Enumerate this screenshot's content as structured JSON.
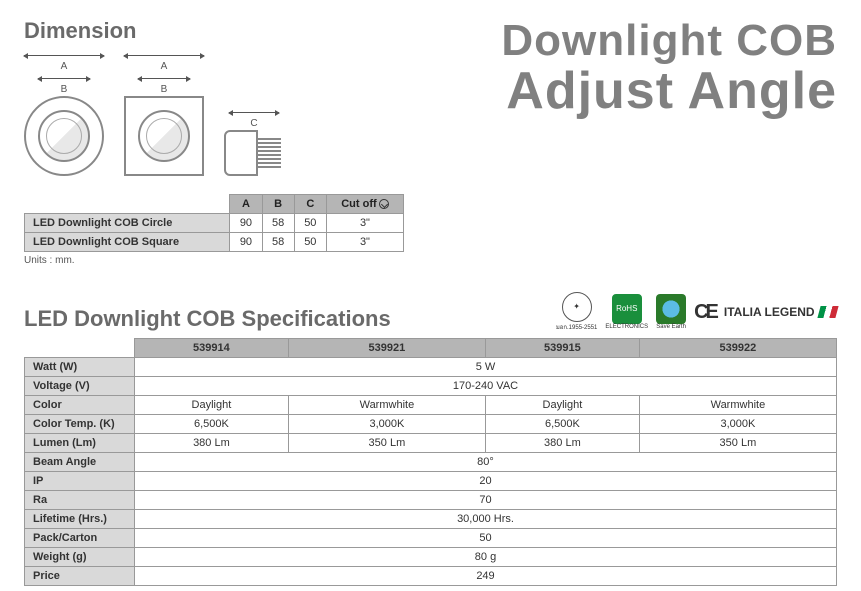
{
  "dimension": {
    "title": "Dimension",
    "labels": {
      "A": "A",
      "B": "B",
      "C": "C"
    },
    "table": {
      "headers": [
        "A",
        "B",
        "C",
        "Cut off"
      ],
      "rows": [
        {
          "name": "LED Downlight COB Circle",
          "values": [
            "90",
            "58",
            "50",
            "3\""
          ]
        },
        {
          "name": "LED Downlight COB Square",
          "values": [
            "90",
            "58",
            "50",
            "3\""
          ]
        }
      ]
    },
    "units": "Units : mm."
  },
  "product_title": {
    "line1": "Downlight COB",
    "line2": "Adjust Angle"
  },
  "spec": {
    "title": "LED Downlight COB Specifications",
    "certs": {
      "tis": "มอก.1955-2551",
      "rohs": "RoHS",
      "save_earth": "Save Earth",
      "ce": "CE",
      "italia": "ITALIA LEGEND"
    },
    "model_headers": [
      "539914",
      "539921",
      "539915",
      "539922"
    ],
    "rows": [
      {
        "label": "Watt (W)",
        "span": true,
        "value": "5 W"
      },
      {
        "label": "Voltage (V)",
        "span": true,
        "value": "170-240 VAC"
      },
      {
        "label": "Color",
        "span": false,
        "values": [
          "Daylight",
          "Warmwhite",
          "Daylight",
          "Warmwhite"
        ]
      },
      {
        "label": "Color Temp. (K)",
        "span": false,
        "values": [
          "6,500K",
          "3,000K",
          "6,500K",
          "3,000K"
        ]
      },
      {
        "label": "Lumen (Lm)",
        "span": false,
        "values": [
          "380 Lm",
          "350 Lm",
          "380 Lm",
          "350 Lm"
        ]
      },
      {
        "label": "Beam Angle",
        "span": true,
        "value": "80°"
      },
      {
        "label": "IP",
        "span": true,
        "value": "20"
      },
      {
        "label": "Ra",
        "span": true,
        "value": "70"
      },
      {
        "label": "Lifetime (Hrs.)",
        "span": true,
        "value": "30,000 Hrs."
      },
      {
        "label": "Pack/Carton",
        "span": true,
        "value": "50"
      },
      {
        "label": "Weight (g)",
        "span": true,
        "value": "80 g"
      },
      {
        "label": "Price",
        "span": true,
        "value": "249"
      }
    ]
  },
  "colors": {
    "heading": "#6a6a6a",
    "th_bg": "#b5b5b5",
    "rowhead_bg": "#d9d9d9",
    "border": "#999999"
  }
}
